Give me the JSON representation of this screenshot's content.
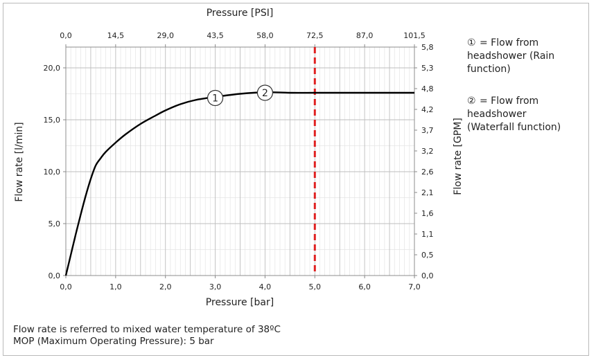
{
  "chart_data": {
    "type": "line",
    "title": "",
    "xlabel": "Pressure [bar]",
    "x2label": "Pressure [PSI]",
    "ylabel": "Flow rate [l/min]",
    "y2label": "Flow rate [GPM]",
    "xlim": [
      0,
      7
    ],
    "ylim": [
      0,
      22
    ],
    "x_ticks": [
      "0,0",
      "1,0",
      "2,0",
      "3,0",
      "4,0",
      "5,0",
      "6,0",
      "7,0"
    ],
    "x_tick_values": [
      0,
      1,
      2,
      3,
      4,
      5,
      6,
      7
    ],
    "x2_ticks": [
      "0,0",
      "14,5",
      "29,0",
      "43,5",
      "58,0",
      "72,5",
      "87,0",
      "101,5"
    ],
    "y_ticks": [
      "0,0",
      "5,0",
      "10,0",
      "15,0",
      "20,0"
    ],
    "y_tick_values": [
      0,
      5,
      10,
      15,
      20
    ],
    "y2_ticks": [
      "0,0",
      "0,5",
      "1,1",
      "1,6",
      "2,1",
      "2,6",
      "3,2",
      "3,7",
      "4,2",
      "4,8",
      "5,3",
      "5,8"
    ],
    "y2_tick_values": [
      0,
      2,
      4,
      6,
      8,
      10,
      12,
      14,
      16,
      18,
      20,
      22
    ],
    "grid": true,
    "series": [
      {
        "color": "#000000",
        "x": [
          0,
          0.1,
          0.2,
          0.3,
          0.4,
          0.5,
          0.6,
          0.7,
          0.8,
          1.0,
          1.2,
          1.5,
          1.8,
          2.0,
          2.3,
          2.6,
          3.0,
          3.5,
          4.0,
          4.5,
          5.0,
          5.5,
          6.0,
          6.5,
          7.0
        ],
        "y": [
          0,
          2.0,
          4.0,
          5.9,
          7.7,
          9.3,
          10.6,
          11.3,
          11.9,
          12.8,
          13.6,
          14.6,
          15.4,
          15.9,
          16.5,
          16.9,
          17.2,
          17.5,
          17.65,
          17.6,
          17.6,
          17.6,
          17.6,
          17.6,
          17.6
        ]
      }
    ],
    "markers": [
      {
        "label": "1",
        "x": 3.0,
        "y": 17.1
      },
      {
        "label": "2",
        "x": 4.0,
        "y": 17.6
      }
    ],
    "limit_line": {
      "x": 5.0,
      "color": "#e02020",
      "style": "dashed"
    }
  },
  "legend": {
    "item1": {
      "symbol": "①",
      "lines": [
        "= Flow from",
        "headshower (Rain",
        "function)"
      ]
    },
    "item2": {
      "symbol": "②",
      "lines": [
        "= Flow from",
        "headshower",
        "(Waterfall function)"
      ]
    }
  },
  "notes": [
    "Flow rate is referred to mixed water temperature  of 38ºC",
    "MOP (Maximum Operating Pressure): 5 bar"
  ]
}
